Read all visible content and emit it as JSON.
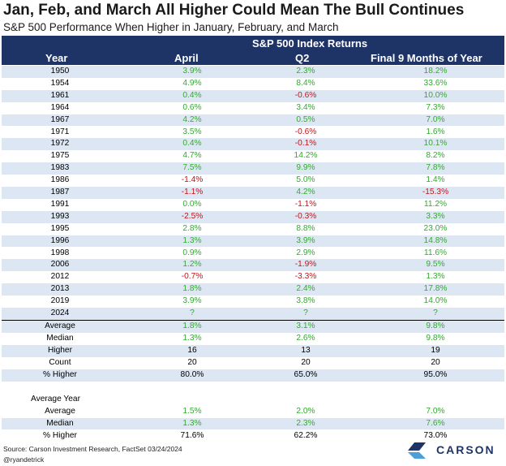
{
  "title": "Jan, Feb, and March All Higher Could Mean The Bull Continues",
  "subtitle": "S&P 500 Performance When Higher in January, February, and March",
  "header": {
    "group": "S&P 500 Index Returns",
    "columns": [
      "Year",
      "April",
      "Q2",
      "Final 9 Months of Year"
    ]
  },
  "rows": [
    {
      "year": "1950",
      "april": "3.9%",
      "q2": "2.3%",
      "final9": "18.2%"
    },
    {
      "year": "1954",
      "april": "4.9%",
      "q2": "8.4%",
      "final9": "33.6%"
    },
    {
      "year": "1961",
      "april": "0.4%",
      "q2": "-0.6%",
      "final9": "10.0%"
    },
    {
      "year": "1964",
      "april": "0.6%",
      "q2": "3.4%",
      "final9": "7.3%"
    },
    {
      "year": "1967",
      "april": "4.2%",
      "q2": "0.5%",
      "final9": "7.0%"
    },
    {
      "year": "1971",
      "april": "3.5%",
      "q2": "-0.6%",
      "final9": "1.6%"
    },
    {
      "year": "1972",
      "april": "0.4%",
      "q2": "-0.1%",
      "final9": "10.1%"
    },
    {
      "year": "1975",
      "april": "4.7%",
      "q2": "14.2%",
      "final9": "8.2%"
    },
    {
      "year": "1983",
      "april": "7.5%",
      "q2": "9.9%",
      "final9": "7.8%"
    },
    {
      "year": "1986",
      "april": "-1.4%",
      "q2": "5.0%",
      "final9": "1.4%"
    },
    {
      "year": "1987",
      "april": "-1.1%",
      "q2": "4.2%",
      "final9": "-15.3%"
    },
    {
      "year": "1991",
      "april": "0.0%",
      "q2": "-1.1%",
      "final9": "11.2%"
    },
    {
      "year": "1993",
      "april": "-2.5%",
      "q2": "-0.3%",
      "final9": "3.3%"
    },
    {
      "year": "1995",
      "april": "2.8%",
      "q2": "8.8%",
      "final9": "23.0%"
    },
    {
      "year": "1996",
      "april": "1.3%",
      "q2": "3.9%",
      "final9": "14.8%"
    },
    {
      "year": "1998",
      "april": "0.9%",
      "q2": "2.9%",
      "final9": "11.6%"
    },
    {
      "year": "2006",
      "april": "1.2%",
      "q2": "-1.9%",
      "final9": "9.5%"
    },
    {
      "year": "2012",
      "april": "-0.7%",
      "q2": "-3.3%",
      "final9": "1.3%"
    },
    {
      "year": "2013",
      "april": "1.8%",
      "q2": "2.4%",
      "final9": "17.8%"
    },
    {
      "year": "2019",
      "april": "3.9%",
      "q2": "3.8%",
      "final9": "14.0%"
    },
    {
      "year": "2024",
      "april": "?",
      "q2": "?",
      "final9": "?"
    }
  ],
  "summary": [
    {
      "label": "Average",
      "april": "1.8%",
      "q2": "3.1%",
      "final9": "9.8%",
      "colored": true
    },
    {
      "label": "Median",
      "april": "1.3%",
      "q2": "2.6%",
      "final9": "9.8%",
      "colored": true
    },
    {
      "label": "Higher",
      "april": "16",
      "q2": "13",
      "final9": "19",
      "colored": false
    },
    {
      "label": "Count",
      "april": "20",
      "q2": "20",
      "final9": "20",
      "colored": false
    },
    {
      "label": "% Higher",
      "april": "80.0%",
      "q2": "65.0%",
      "final9": "95.0%",
      "colored": false
    }
  ],
  "average_year": {
    "heading": "Average Year",
    "rows": [
      {
        "label": "Average",
        "april": "1.5%",
        "q2": "2.0%",
        "final9": "7.0%",
        "colored": true
      },
      {
        "label": "Median",
        "april": "1.3%",
        "q2": "2.3%",
        "final9": "7.6%",
        "colored": true
      },
      {
        "label": "% Higher",
        "april": "71.6%",
        "q2": "62.2%",
        "final9": "73.0%",
        "colored": false
      }
    ]
  },
  "footer": {
    "source": "Source: Carson Investment Research, FactSet 03/24/2024",
    "handle": "@ryandetrick",
    "logo_text": "CARSON"
  },
  "colors": {
    "header_bg": "#1f3466",
    "alt_row": "#dde7f3",
    "positive": "#35a832",
    "negative": "#c0151b"
  }
}
